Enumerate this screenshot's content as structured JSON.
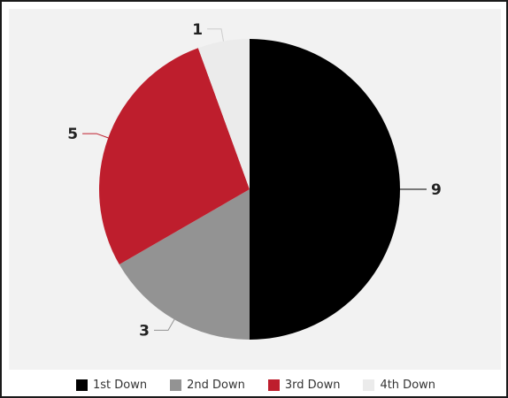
{
  "chart_data": {
    "type": "pie",
    "title": "",
    "categories": [
      "1st Down",
      "2nd Down",
      "3rd Down",
      "4th Down"
    ],
    "values": [
      9,
      3,
      5,
      1
    ],
    "colors": [
      "#000000",
      "#939393",
      "#be1e2d",
      "#ebebeb"
    ],
    "data_labels": [
      "9",
      "3",
      "5",
      "1"
    ],
    "start_angle_deg": 0,
    "direction": "clockwise",
    "legend_position": "bottom"
  }
}
